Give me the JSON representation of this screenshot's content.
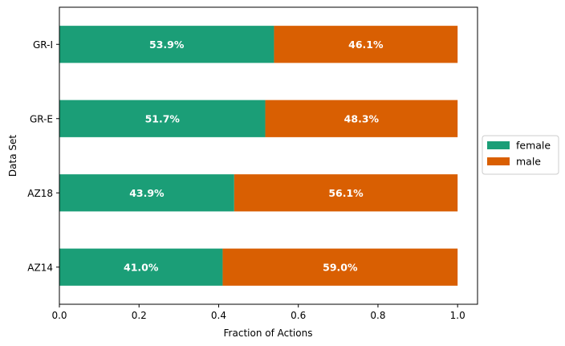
{
  "chart_data": {
    "type": "bar",
    "orientation": "horizontal",
    "stacked": true,
    "categories": [
      "GR-I",
      "GR-E",
      "AZ18",
      "AZ14"
    ],
    "series": [
      {
        "name": "female",
        "color": "#1b9e77",
        "values": [
          0.539,
          0.517,
          0.439,
          0.41
        ],
        "labels": [
          "53.9%",
          "51.7%",
          "43.9%",
          "41.0%"
        ]
      },
      {
        "name": "male",
        "color": "#d95f02",
        "values": [
          0.461,
          0.483,
          0.561,
          0.59
        ],
        "labels": [
          "46.1%",
          "48.3%",
          "56.1%",
          "59.0%"
        ]
      }
    ],
    "xlabel": "Fraction of Actions",
    "ylabel": "Data Set",
    "xlim": [
      0.0,
      1.05
    ],
    "xticks": [
      0.0,
      0.2,
      0.4,
      0.6,
      0.8,
      1.0
    ],
    "xtick_labels": [
      "0.0",
      "0.2",
      "0.4",
      "0.6",
      "0.8",
      "1.0"
    ],
    "grid": false,
    "legend_position": "right, outside plot"
  }
}
